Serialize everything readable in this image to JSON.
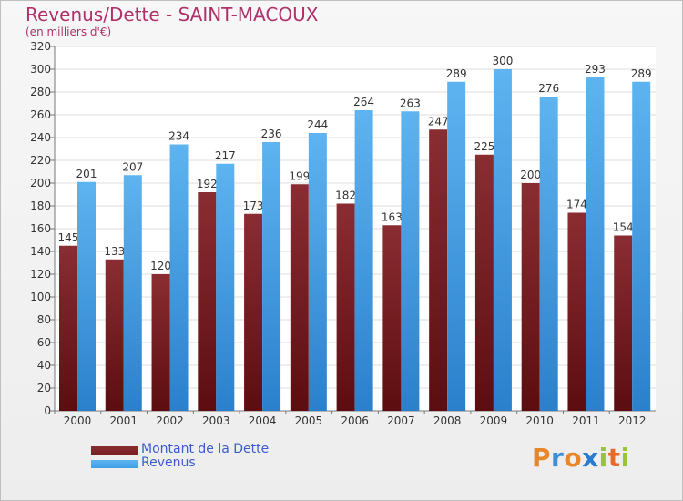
{
  "chart_data": {
    "type": "bar",
    "title": "Revenus/Dette - SAINT-MACOUX",
    "subtitle": "(en milliers d'€)",
    "categories": [
      "2000",
      "2001",
      "2002",
      "2003",
      "2004",
      "2005",
      "2006",
      "2007",
      "2008",
      "2009",
      "2010",
      "2011",
      "2012"
    ],
    "series": [
      {
        "name": "Montant de la Dette",
        "color": "#7a1e22",
        "values": [
          145,
          133,
          120,
          192,
          173,
          199,
          182,
          163,
          247,
          225,
          200,
          174,
          154
        ]
      },
      {
        "name": "Revenus",
        "color": "#3f9ee8",
        "values": [
          201,
          207,
          234,
          217,
          236,
          244,
          264,
          263,
          289,
          300,
          276,
          293,
          289
        ]
      }
    ],
    "ylim": [
      0,
      320
    ],
    "yticks": [
      0,
      20,
      40,
      60,
      80,
      100,
      120,
      140,
      160,
      180,
      200,
      220,
      240,
      260,
      280,
      300,
      320
    ],
    "grid": true,
    "legend_position": "bottom-left"
  },
  "legend": {
    "debt_label": "Montant de la Dette",
    "revenue_label": "Revenus"
  },
  "brand": {
    "letters": [
      "P",
      "r",
      "o",
      "x",
      "i",
      "t",
      "i"
    ],
    "colors": [
      "#e8862a",
      "#3f8fd8",
      "#e8862a",
      "#2a7ad0",
      "#9ac23a",
      "#e86a2a",
      "#9ac23a"
    ]
  }
}
